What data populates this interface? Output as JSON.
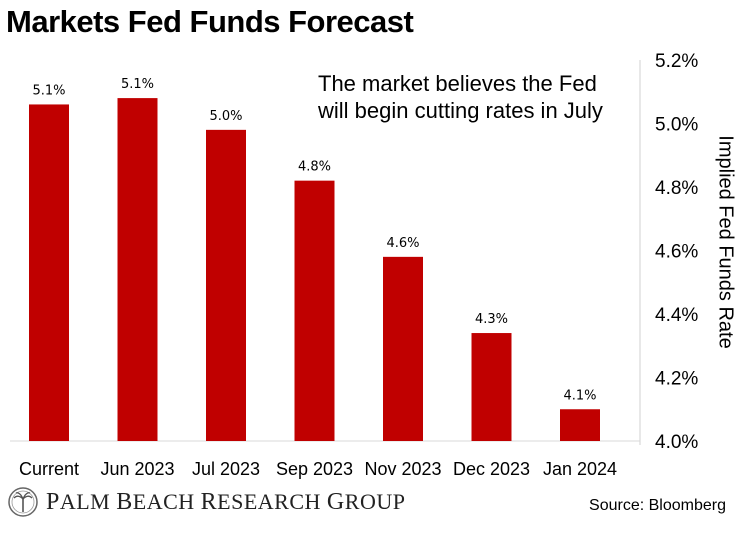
{
  "chart_data": {
    "type": "bar",
    "title": "Markets Fed Funds Forecast",
    "annotation": [
      "The market believes the Fed",
      "will begin cutting rates in July"
    ],
    "categories": [
      "Current",
      "Jun 2023",
      "Jul 2023",
      "Sep 2023",
      "Nov 2023",
      "Dec 2023",
      "Jan 2024"
    ],
    "values": [
      5.06,
      5.08,
      4.98,
      4.82,
      4.58,
      4.34,
      4.1
    ],
    "data_labels": [
      "5.1%",
      "5.1%",
      "5.0%",
      "4.8%",
      "4.6%",
      "4.3%",
      "4.1%"
    ],
    "ylabel": "Implied Fed Funds Rate",
    "ylim": [
      4.0,
      5.2
    ],
    "yticks": [
      "4.0%",
      "4.2%",
      "4.4%",
      "4.6%",
      "4.8%",
      "5.0%",
      "5.2%"
    ],
    "y_axis_side": "right",
    "grid": false,
    "bar_color": "#c00000"
  },
  "footer": {
    "brand": "Palm Beach Research Group",
    "source": "Source: Bloomberg"
  },
  "icons": {
    "brand_logo": "palm-tree-seal-icon"
  }
}
